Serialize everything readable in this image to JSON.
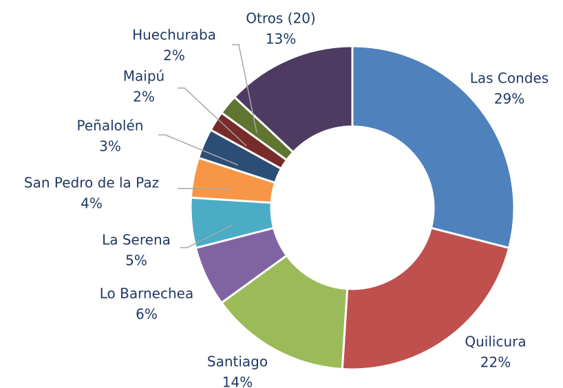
{
  "chart_data": {
    "type": "donut",
    "categories": [
      "Las Condes",
      "Quilicura",
      "Santiago",
      "Lo Barnechea",
      "La Serena",
      "San Pedro de la Paz",
      "Peñalolén",
      "Maipú",
      "Huechuraba",
      "Otros (20)"
    ],
    "values": [
      29,
      22,
      14,
      6,
      5,
      4,
      3,
      2,
      2,
      13
    ],
    "value_labels": [
      "29%",
      "22%",
      "14%",
      "6%",
      "5%",
      "4%",
      "3%",
      "2%",
      "2%",
      "13%"
    ],
    "colors": [
      "#4f81bd",
      "#c0504d",
      "#9bbb59",
      "#8064a2",
      "#4bacc6",
      "#f79646",
      "#2c4d75",
      "#772c2a",
      "#5f7530",
      "#4d3b62"
    ]
  }
}
